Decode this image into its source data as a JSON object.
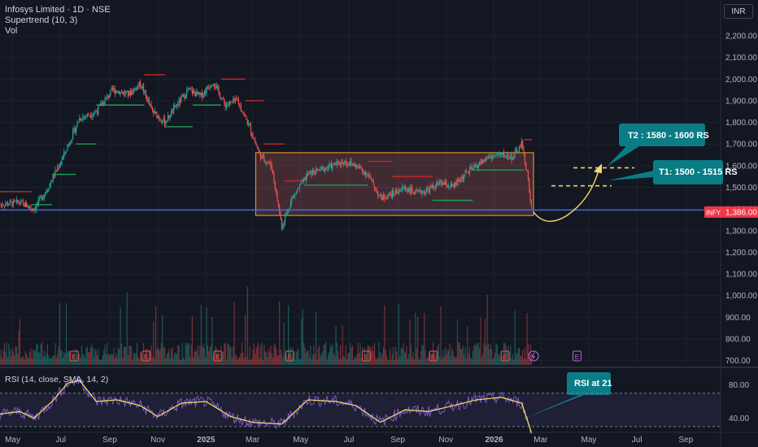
{
  "legend": {
    "title": "Infosys Limited · 1D · NSE",
    "indicator": "Supertrend (10, 3)",
    "volume": "Vol",
    "rsi": "RSI (14, close, SMA, 14, 2)"
  },
  "currency": "INR",
  "price_tag": {
    "symbol": "INFY",
    "value": "1,386.00"
  },
  "callouts": {
    "t2": "T2 : 1580 - 1600 RS",
    "t1": "T1: 1500 - 1515 RS",
    "rsi": "RSI at 21"
  },
  "earnings_marker": "E",
  "colors": {
    "background": "#131722",
    "up": "#26a69a",
    "down": "#ef5350",
    "supertrend_up": "#1b9e4b",
    "supertrend_down": "#c62828",
    "box_border": "#f5a623",
    "box_fill": "rgba(255,120,120,0.20)",
    "support_line": "#4a6cd4",
    "target_line": "#f5e663",
    "arrow": "#f5d76e",
    "callout_bg": "#0a7c86",
    "rsi_line": "#7e57c2",
    "rsi_ma": "#f5e663",
    "price_tag": "#f23645"
  },
  "chart_data": {
    "type": "line",
    "main": {
      "y_axis_label": "INR",
      "y_ticks": [
        700,
        800,
        900,
        1000,
        1100,
        1200,
        1300,
        1400,
        1500,
        1600,
        1700,
        1800,
        1900,
        2000,
        2100,
        2200
      ],
      "y_tick_labels": [
        "700.00",
        "800.00",
        "900.00",
        "1,000.00",
        "1,100.00",
        "1,200.00",
        "1,300.00",
        "1,400.00",
        "1,500.00",
        "1,600.00",
        "1,700.00",
        "1,800.00",
        "1,900.00",
        "2,000.00",
        "2,100.00",
        "2,200.00"
      ],
      "ylim": [
        680,
        2260
      ],
      "x_tick_labels": [
        "May",
        "Jul",
        "Sep",
        "Nov",
        "2025",
        "Mar",
        "May",
        "Jul",
        "Sep",
        "Nov",
        "2026",
        "Mar",
        "May",
        "Jul",
        "Sep"
      ],
      "x_tick_dates": [
        "2024-05-01",
        "2024-07-01",
        "2024-09-01",
        "2024-11-01",
        "2025-01-01",
        "2025-03-01",
        "2025-05-01",
        "2025-07-01",
        "2025-09-01",
        "2025-11-01",
        "2026-01-01",
        "2026-03-01",
        "2026-05-01",
        "2026-07-01",
        "2026-09-01"
      ],
      "xlim": [
        "2024-04-15",
        "2026-10-15"
      ],
      "price_path": [
        {
          "date": "2024-04-15",
          "price": 1420
        },
        {
          "date": "2024-05-10",
          "price": 1430
        },
        {
          "date": "2024-05-28",
          "price": 1400
        },
        {
          "date": "2024-06-15",
          "price": 1500
        },
        {
          "date": "2024-07-05",
          "price": 1650
        },
        {
          "date": "2024-07-25",
          "price": 1820
        },
        {
          "date": "2024-08-15",
          "price": 1850
        },
        {
          "date": "2024-09-05",
          "price": 1950
        },
        {
          "date": "2024-09-25",
          "price": 1930
        },
        {
          "date": "2024-10-10",
          "price": 1980
        },
        {
          "date": "2024-10-25",
          "price": 1850
        },
        {
          "date": "2024-11-10",
          "price": 1800
        },
        {
          "date": "2024-11-25",
          "price": 1880
        },
        {
          "date": "2024-12-10",
          "price": 1950
        },
        {
          "date": "2024-12-25",
          "price": 1920
        },
        {
          "date": "2025-01-10",
          "price": 1990
        },
        {
          "date": "2025-01-25",
          "price": 1880
        },
        {
          "date": "2025-02-10",
          "price": 1900
        },
        {
          "date": "2025-02-25",
          "price": 1780
        },
        {
          "date": "2025-03-10",
          "price": 1650
        },
        {
          "date": "2025-03-25",
          "price": 1600
        },
        {
          "date": "2025-04-07",
          "price": 1320
        },
        {
          "date": "2025-04-20",
          "price": 1450
        },
        {
          "date": "2025-05-10",
          "price": 1560
        },
        {
          "date": "2025-05-25",
          "price": 1580
        },
        {
          "date": "2025-06-10",
          "price": 1600
        },
        {
          "date": "2025-06-25",
          "price": 1620
        },
        {
          "date": "2025-07-10",
          "price": 1600
        },
        {
          "date": "2025-07-25",
          "price": 1560
        },
        {
          "date": "2025-08-10",
          "price": 1450
        },
        {
          "date": "2025-08-25",
          "price": 1470
        },
        {
          "date": "2025-09-10",
          "price": 1500
        },
        {
          "date": "2025-09-25",
          "price": 1470
        },
        {
          "date": "2025-10-10",
          "price": 1490
        },
        {
          "date": "2025-10-25",
          "price": 1520
        },
        {
          "date": "2025-11-10",
          "price": 1500
        },
        {
          "date": "2025-11-25",
          "price": 1560
        },
        {
          "date": "2025-12-10",
          "price": 1600
        },
        {
          "date": "2025-12-25",
          "price": 1640
        },
        {
          "date": "2026-01-10",
          "price": 1650
        },
        {
          "date": "2026-01-25",
          "price": 1640
        },
        {
          "date": "2026-02-05",
          "price": 1700
        },
        {
          "date": "2026-02-12",
          "price": 1560
        },
        {
          "date": "2026-02-18",
          "price": 1386
        }
      ],
      "supertrend": [
        {
          "start": "2024-04-15",
          "end": "2024-05-25",
          "level": 1480,
          "trend": "down"
        },
        {
          "start": "2024-05-25",
          "end": "2024-06-20",
          "level": 1420,
          "trend": "up"
        },
        {
          "start": "2024-06-20",
          "end": "2024-07-20",
          "level": 1560,
          "trend": "up"
        },
        {
          "start": "2024-07-20",
          "end": "2024-08-15",
          "level": 1700,
          "trend": "up"
        },
        {
          "start": "2024-08-15",
          "end": "2024-10-15",
          "level": 1880,
          "trend": "up"
        },
        {
          "start": "2024-10-15",
          "end": "2024-11-10",
          "level": 2020,
          "trend": "down"
        },
        {
          "start": "2024-11-10",
          "end": "2024-12-15",
          "level": 1780,
          "trend": "up"
        },
        {
          "start": "2024-12-15",
          "end": "2025-01-20",
          "level": 1880,
          "trend": "up"
        },
        {
          "start": "2025-01-20",
          "end": "2025-02-20",
          "level": 2000,
          "trend": "down"
        },
        {
          "start": "2025-02-20",
          "end": "2025-03-15",
          "level": 1900,
          "trend": "down"
        },
        {
          "start": "2025-03-15",
          "end": "2025-04-10",
          "level": 1700,
          "trend": "down"
        },
        {
          "start": "2025-04-10",
          "end": "2025-05-05",
          "level": 1530,
          "trend": "down"
        },
        {
          "start": "2025-05-05",
          "end": "2025-07-25",
          "level": 1510,
          "trend": "up"
        },
        {
          "start": "2025-07-25",
          "end": "2025-08-25",
          "level": 1620,
          "trend": "down"
        },
        {
          "start": "2025-08-25",
          "end": "2025-10-15",
          "level": 1550,
          "trend": "down"
        },
        {
          "start": "2025-10-15",
          "end": "2025-12-05",
          "level": 1440,
          "trend": "up"
        },
        {
          "start": "2025-12-05",
          "end": "2026-02-08",
          "level": 1580,
          "trend": "up"
        },
        {
          "start": "2026-02-08",
          "end": "2026-02-18",
          "level": 1720,
          "trend": "down"
        }
      ],
      "consolidation_box": {
        "start": "2025-03-05",
        "end": "2026-02-20",
        "top": 1660,
        "bottom": 1370
      },
      "support_level": 1395,
      "targets": {
        "t1": [
          1500,
          1515
        ],
        "t2": [
          1580,
          1600
        ]
      },
      "last_price": 1386,
      "earnings_dates": [
        "2024-07-18",
        "2024-10-17",
        "2025-01-16",
        "2025-04-17",
        "2025-07-23",
        "2025-10-16",
        "2026-01-15",
        "2026-04-16"
      ],
      "dividend_date": "2026-02-20",
      "volume_scale": "relative"
    },
    "rsi": {
      "y_ticks": [
        40,
        80
      ],
      "y_tick_labels": [
        "40.00",
        "80.00"
      ],
      "ylim": [
        25,
        95
      ],
      "overbought": 70,
      "oversold": 30,
      "last_value": 21,
      "path": [
        {
          "date": "2024-04-15",
          "value": 45
        },
        {
          "date": "2024-05-10",
          "value": 48
        },
        {
          "date": "2024-05-28",
          "value": 40
        },
        {
          "date": "2024-06-20",
          "value": 60
        },
        {
          "date": "2024-07-10",
          "value": 82
        },
        {
          "date": "2024-07-25",
          "value": 85
        },
        {
          "date": "2024-08-15",
          "value": 60
        },
        {
          "date": "2024-09-10",
          "value": 62
        },
        {
          "date": "2024-10-10",
          "value": 55
        },
        {
          "date": "2024-11-01",
          "value": 42
        },
        {
          "date": "2024-12-01",
          "value": 58
        },
        {
          "date": "2025-01-01",
          "value": 60
        },
        {
          "date": "2025-02-01",
          "value": 42
        },
        {
          "date": "2025-03-01",
          "value": 35
        },
        {
          "date": "2025-04-07",
          "value": 33
        },
        {
          "date": "2025-05-10",
          "value": 62
        },
        {
          "date": "2025-06-15",
          "value": 60
        },
        {
          "date": "2025-07-10",
          "value": 55
        },
        {
          "date": "2025-08-10",
          "value": 35
        },
        {
          "date": "2025-09-10",
          "value": 50
        },
        {
          "date": "2025-10-10",
          "value": 48
        },
        {
          "date": "2025-11-10",
          "value": 55
        },
        {
          "date": "2025-12-10",
          "value": 62
        },
        {
          "date": "2026-01-10",
          "value": 65
        },
        {
          "date": "2026-02-05",
          "value": 58
        },
        {
          "date": "2026-02-18",
          "value": 21
        }
      ]
    }
  }
}
